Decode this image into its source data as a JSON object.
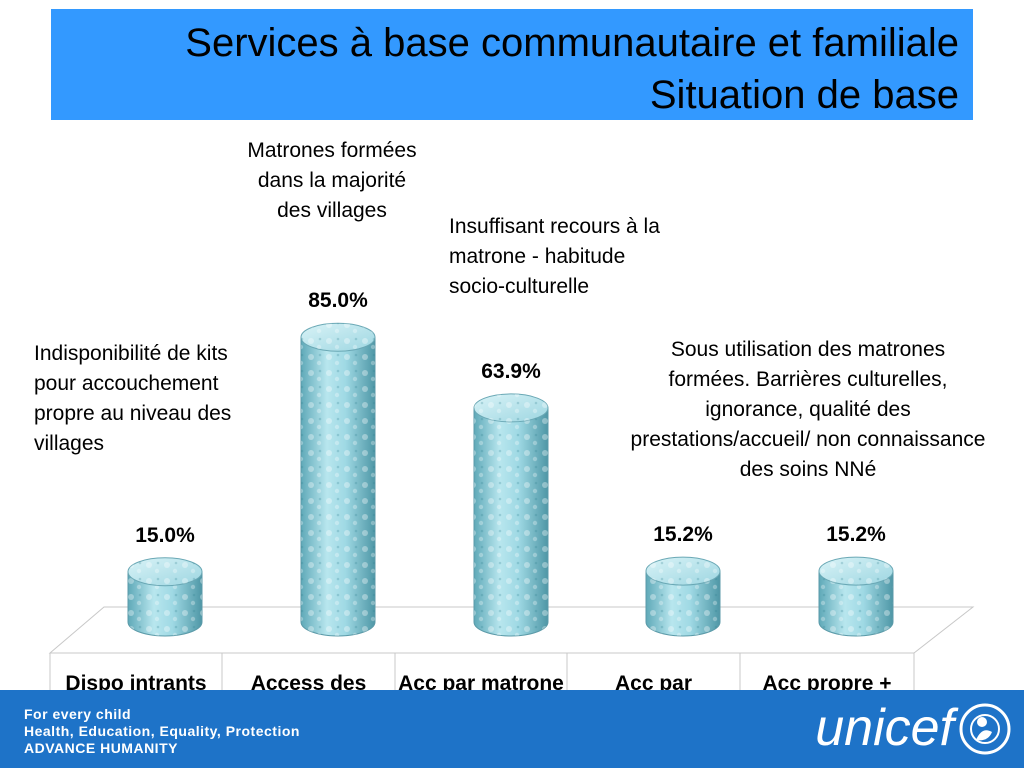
{
  "title": {
    "line1": "Services à base communautaire et familiale",
    "line2": "Situation de base"
  },
  "annotations": {
    "matrones": "Matrones formées dans la majorité des villages",
    "insuffisant": "Insuffisant recours à la matrone - habitude socio-culturelle",
    "indisponibilite": "Indisponibilité de kits pour accouchement propre au niveau des villages",
    "sous_utilisation": "Sous utilisation des matrones formées. Barrières culturelles, ignorance, qualité des prestations/accueil/ non connaissance des soins NNé"
  },
  "chart_data": {
    "type": "bar",
    "categories": [
      "Dispo intrants village",
      "Access des matrones F",
      "Acc par matrone",
      "Acc par matrones form",
      "Acc propre + Matrone F + T°"
    ],
    "values": [
      15.0,
      85.0,
      63.9,
      15.2,
      15.2
    ],
    "value_labels": [
      "15.0%",
      "85.0%",
      "63.9%",
      "15.2%",
      "15.2%"
    ],
    "unit": "%",
    "ylim": [
      0,
      100
    ],
    "style": "3d-cylinder",
    "bar_color": "#8fd0dd"
  },
  "footer": {
    "line1": "For every child",
    "line2": "Health, Education, Equality, Protection",
    "line3": "ADVANCE HUMANITY",
    "logo_text": "unicef",
    "background": "#1e73c8"
  }
}
